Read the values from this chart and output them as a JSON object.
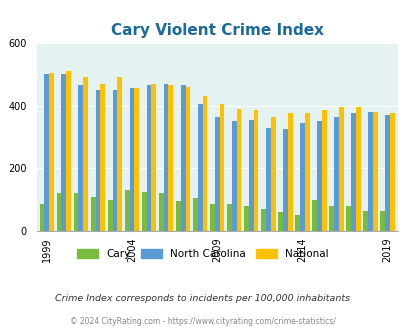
{
  "title": "Cary Violent Crime Index",
  "years": [
    1999,
    2000,
    2001,
    2002,
    2003,
    2004,
    2005,
    2006,
    2007,
    2008,
    2009,
    2010,
    2011,
    2012,
    2013,
    2014,
    2015,
    2016,
    2017,
    2018,
    2019
  ],
  "cary": [
    85,
    120,
    120,
    110,
    100,
    130,
    125,
    120,
    95,
    105,
    85,
    85,
    80,
    70,
    60,
    50,
    100,
    80,
    80,
    65,
    65
  ],
  "nc": [
    500,
    500,
    465,
    450,
    450,
    455,
    465,
    470,
    465,
    405,
    365,
    350,
    355,
    330,
    325,
    345,
    350,
    365,
    375,
    380,
    370
  ],
  "national": [
    505,
    510,
    490,
    470,
    490,
    455,
    470,
    465,
    460,
    430,
    405,
    390,
    385,
    365,
    375,
    375,
    385,
    395,
    395,
    380,
    375
  ],
  "cary_color": "#77bb3f",
  "nc_color": "#5b9bd5",
  "national_color": "#ffc000",
  "bg_color": "#e5f2f2",
  "title_color": "#1a6b9a",
  "yticks": [
    0,
    200,
    400,
    600
  ],
  "xticks": [
    1999,
    2004,
    2009,
    2014,
    2019
  ],
  "ylabel_note": "Crime Index corresponds to incidents per 100,000 inhabitants",
  "footer": "© 2024 CityRating.com - https://www.cityrating.com/crime-statistics/",
  "bar_width": 0.28
}
